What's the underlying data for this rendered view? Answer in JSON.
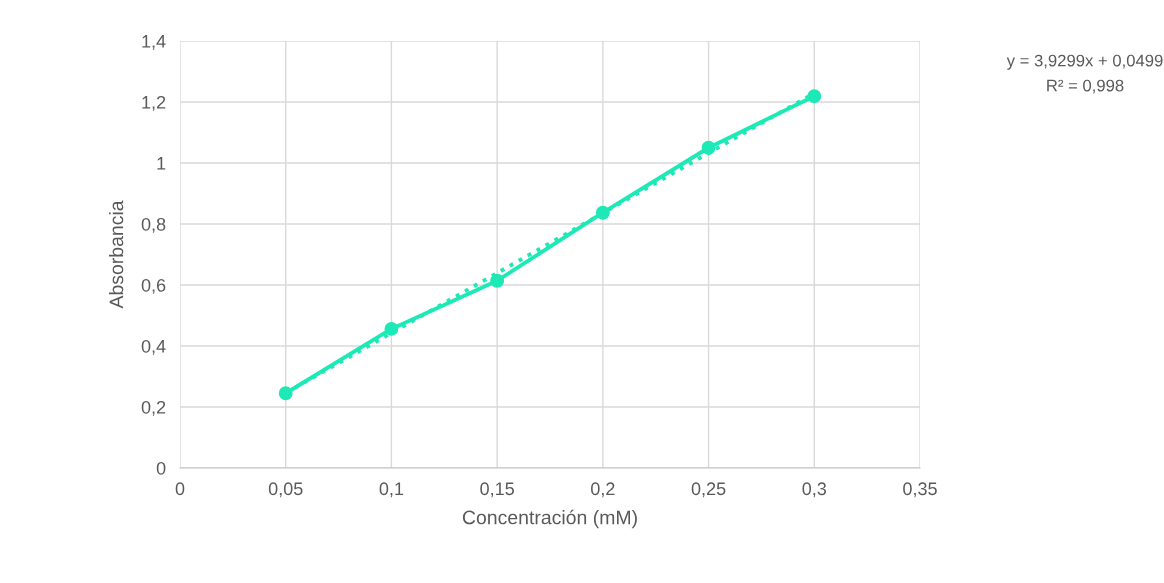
{
  "chart_data": {
    "type": "line",
    "xlabel": "Concentración (mM)",
    "ylabel": "Absorbancia",
    "x": [
      0.05,
      0.1,
      0.15,
      0.2,
      0.25,
      0.3
    ],
    "series": [
      {
        "color": "#1de9b6",
        "values": [
          0.245,
          0.456,
          0.614,
          0.837,
          1.05,
          1.219
        ],
        "marker": "circle",
        "line_style": "solid"
      },
      {
        "type": "line",
        "color": "#1de9b6",
        "x": [
          0.05,
          0.3
        ],
        "values": [
          0.246,
          1.229
        ],
        "marker": "none",
        "line_style": "dotted"
      }
    ],
    "xlim": [
      0,
      0.35
    ],
    "xticks": [
      {
        "value": 0,
        "label": "0"
      },
      {
        "value": 0.05,
        "label": "0,05"
      },
      {
        "value": 0.1,
        "label": "0,1"
      },
      {
        "value": 0.15,
        "label": "0,15"
      },
      {
        "value": 0.2,
        "label": "0,2"
      },
      {
        "value": 0.25,
        "label": "0,25"
      },
      {
        "value": 0.3,
        "label": "0,3"
      },
      {
        "value": 0.35,
        "label": "0,35"
      }
    ],
    "ylim": [
      0,
      1.4
    ],
    "yticks": [
      {
        "value": 0,
        "label": "0"
      },
      {
        "value": 0.2,
        "label": "0,2"
      },
      {
        "value": 0.4,
        "label": "0,4"
      },
      {
        "value": 0.6,
        "label": "0,6"
      },
      {
        "value": 0.8,
        "label": "0,8"
      },
      {
        "value": 1,
        "label": "1"
      },
      {
        "value": 1.2,
        "label": "1,2"
      },
      {
        "value": 1.4,
        "label": "1,4"
      }
    ],
    "grid": true,
    "legend": false,
    "annotations": [
      "y = 3,9299x + 0,0499",
      "R² = 0,998"
    ]
  }
}
